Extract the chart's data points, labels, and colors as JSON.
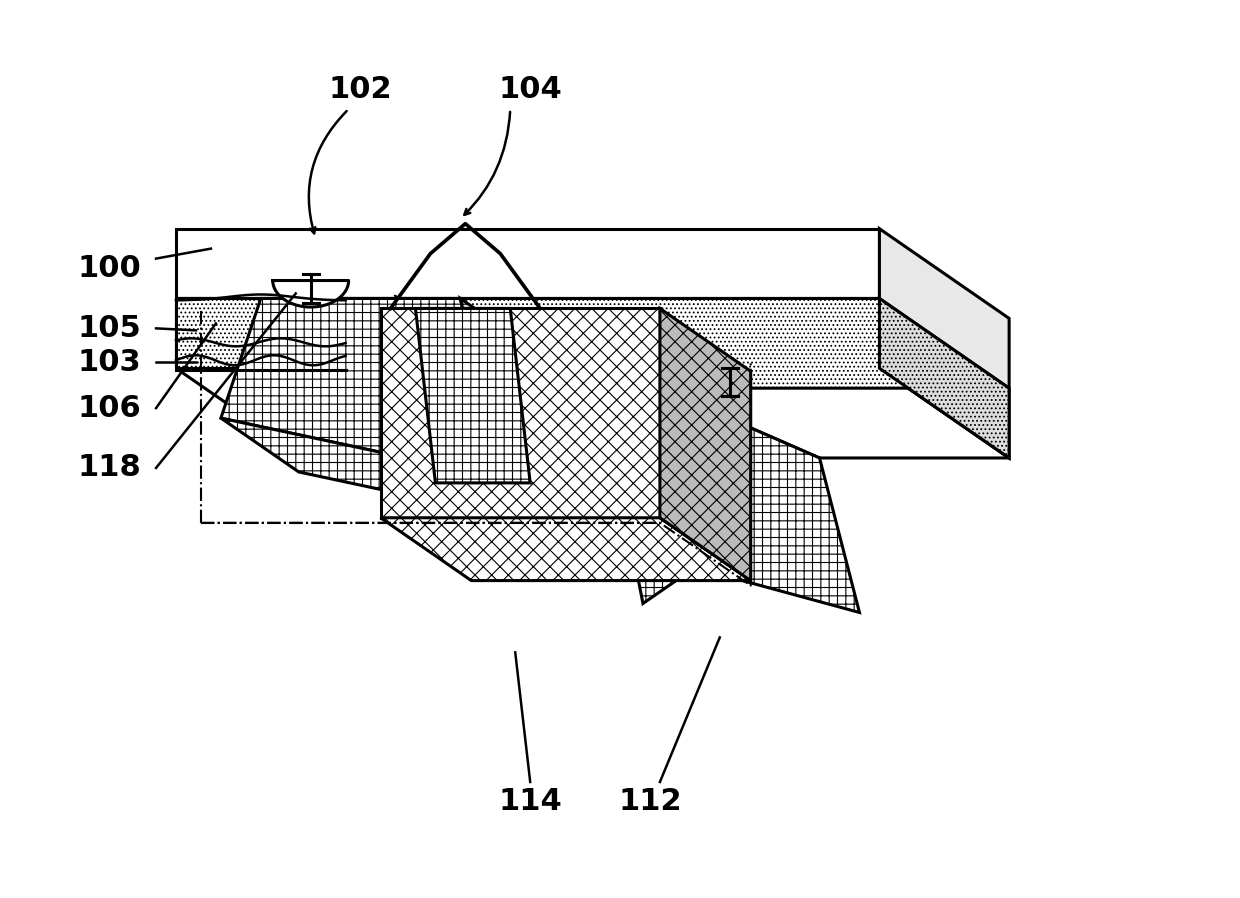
{
  "background_color": "#ffffff",
  "fig_width": 12.4,
  "fig_height": 8.98,
  "lw": 2.2,
  "lc": "#000000",
  "label_fontsize": 22,
  "hatch_lw": 0.8
}
